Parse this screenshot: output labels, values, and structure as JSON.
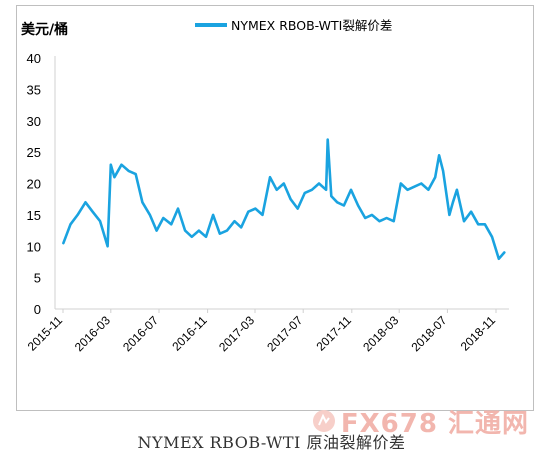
{
  "chart_data": {
    "type": "line",
    "ylabel": "美元/桶",
    "legend": {
      "placement": "top-center",
      "entries": [
        "NYMEX RBOB-WTI裂解价差"
      ]
    },
    "ylim": [
      0,
      40
    ],
    "yticks": [
      "0",
      "5",
      "10",
      "15",
      "20",
      "25",
      "30",
      "35",
      "40"
    ],
    "xticks": [
      "2015-11",
      "2016-03",
      "2016-07",
      "2016-11",
      "2017-03",
      "2017-07",
      "2017-11",
      "2018-03",
      "2018-07",
      "2018-11"
    ],
    "grid": false,
    "series": [
      {
        "name": "NYMEX RBOB-WTI裂解价差",
        "color": "#1aa3e0",
        "x": [
          "2015-11-02",
          "2015-11-20",
          "2015-12-08",
          "2015-12-28",
          "2016-01-15",
          "2016-02-03",
          "2016-02-22",
          "2016-03-01",
          "2016-03-10",
          "2016-03-28",
          "2016-04-15",
          "2016-05-03",
          "2016-05-20",
          "2016-06-08",
          "2016-06-25",
          "2016-07-12",
          "2016-08-01",
          "2016-08-18",
          "2016-09-05",
          "2016-09-22",
          "2016-10-10",
          "2016-10-28",
          "2016-11-15",
          "2016-12-02",
          "2016-12-20",
          "2017-01-08",
          "2017-01-25",
          "2017-02-12",
          "2017-03-02",
          "2017-03-20",
          "2017-04-08",
          "2017-04-25",
          "2017-05-13",
          "2017-05-30",
          "2017-06-17",
          "2017-07-05",
          "2017-07-23",
          "2017-08-10",
          "2017-08-28",
          "2017-09-01",
          "2017-09-10",
          "2017-09-25",
          "2017-10-12",
          "2017-10-30",
          "2017-11-17",
          "2017-12-05",
          "2017-12-22",
          "2018-01-10",
          "2018-01-28",
          "2018-02-15",
          "2018-03-05",
          "2018-03-22",
          "2018-04-09",
          "2018-04-26",
          "2018-05-14",
          "2018-05-31",
          "2018-06-10",
          "2018-06-20",
          "2018-07-06",
          "2018-07-15",
          "2018-07-25",
          "2018-08-12",
          "2018-08-30",
          "2018-09-17",
          "2018-10-04",
          "2018-10-22",
          "2018-11-08",
          "2018-11-22"
        ],
        "values": [
          10.5,
          13.5,
          15,
          17,
          15.5,
          14,
          10,
          23,
          21,
          23,
          22,
          21.5,
          17,
          15,
          12.5,
          14.5,
          13.5,
          16,
          12.5,
          11.5,
          12.5,
          11.5,
          15,
          12,
          12.5,
          14,
          13,
          15.5,
          16,
          15,
          21,
          19,
          20,
          17.5,
          16,
          18.5,
          19,
          20,
          19,
          27,
          18,
          17,
          16.5,
          19,
          16.5,
          14.5,
          15,
          14,
          14.5,
          14,
          20,
          19,
          19.5,
          20,
          19,
          21,
          24.5,
          22,
          15,
          17,
          19,
          14,
          15.5,
          13.5,
          13.5,
          11.5,
          8,
          9
        ]
      }
    ]
  },
  "caption": "NYMEX RBOB-WTI 原油裂解价差",
  "watermark": {
    "text": "FX678",
    "suffix": "汇通网"
  }
}
